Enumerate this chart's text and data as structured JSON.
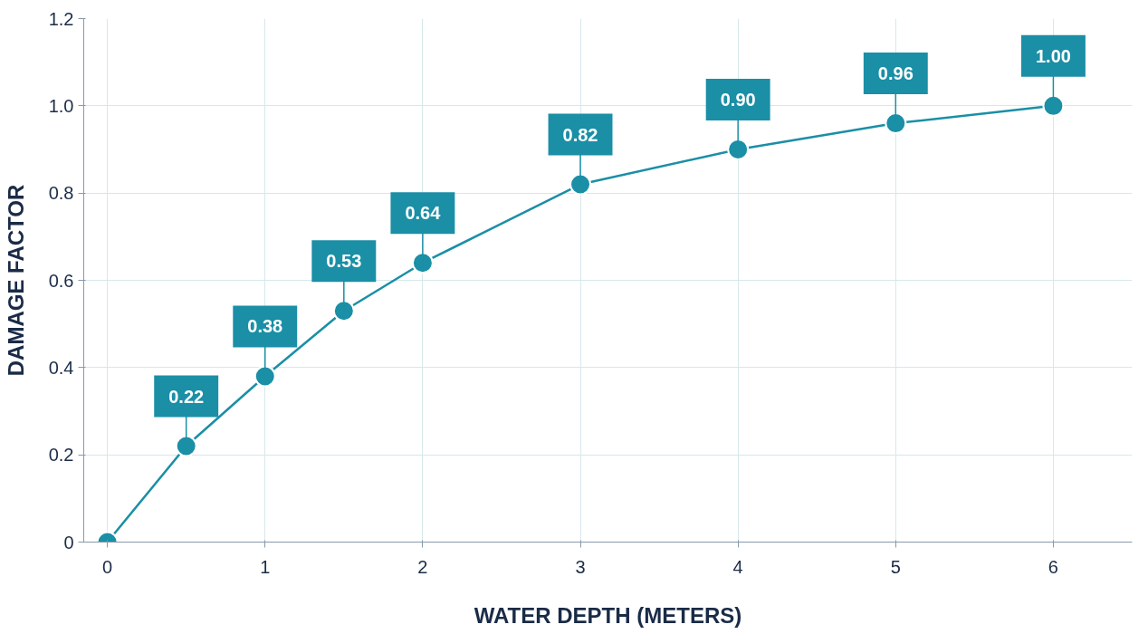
{
  "chart_data": {
    "type": "line",
    "xlabel": "WATER DEPTH (METERS)",
    "ylabel": "DAMAGE FACTOR",
    "x": [
      0,
      0.5,
      1,
      1.5,
      2,
      3,
      4,
      5,
      6
    ],
    "series": [
      {
        "color": "#1a8fa6",
        "values": [
          0,
          0.22,
          0.38,
          0.53,
          0.64,
          0.82,
          0.9,
          0.96,
          1.0
        ],
        "value_labels": [
          null,
          "0.22",
          "0.38",
          "0.53",
          "0.64",
          "0.82",
          "0.90",
          "0.96",
          "1.00"
        ]
      }
    ],
    "xlim": [
      -0.15,
      6.5
    ],
    "ylim": [
      0,
      1.2
    ],
    "xticks": [
      0,
      1,
      2,
      3,
      4,
      5,
      6
    ],
    "yticks": [
      0,
      0.2,
      0.4,
      0.6,
      0.8,
      {
        "value": 1.0,
        "label": "1.0"
      },
      1.2
    ],
    "grid": true,
    "marker": "circle",
    "line_style": "solid"
  }
}
